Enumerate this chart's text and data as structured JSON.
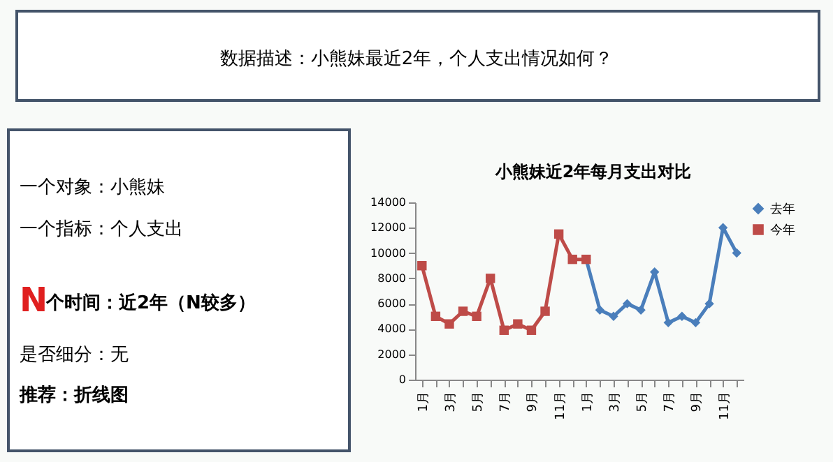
{
  "chart_data": {
    "type": "line",
    "title": "小熊妹近2年每月支出对比",
    "annotations": [
      "数据描述：小熊妹最近2年，个人支出情况如何？",
      "一个对象：小熊妹",
      "一个指标：个人支出",
      "N个时间：近2年（N较多）",
      "是否细分：无",
      "推荐：折线图"
    ],
    "categories": [
      "1月",
      null,
      "3月",
      null,
      "5月",
      null,
      "7月",
      null,
      "9月",
      null,
      "11月",
      null,
      "1月",
      null,
      "3月",
      null,
      "5月",
      null,
      "7月",
      null,
      "9月",
      null,
      "11月",
      null
    ],
    "series": [
      {
        "name": "去年",
        "color": "#4a7ebb",
        "marker": "diamond",
        "values": [
          null,
          null,
          null,
          null,
          null,
          null,
          null,
          null,
          null,
          null,
          null,
          null,
          9500,
          5500,
          5000,
          6000,
          5500,
          8500,
          4500,
          5000,
          4500,
          6000,
          12000,
          10000
        ]
      },
      {
        "name": "今年",
        "color": "#be4b48",
        "marker": "square",
        "values": [
          9000,
          5000,
          4400,
          5400,
          5000,
          8000,
          3900,
          4400,
          3900,
          5400,
          11500,
          9500,
          9500,
          null,
          null,
          null,
          null,
          null,
          null,
          null,
          null,
          null,
          null,
          null
        ]
      }
    ],
    "ylim": [
      0,
      14000
    ],
    "yticks": [
      0,
      2000,
      4000,
      6000,
      8000,
      10000,
      12000,
      14000
    ],
    "grid": false,
    "legend": "right",
    "line_style": "solid"
  }
}
